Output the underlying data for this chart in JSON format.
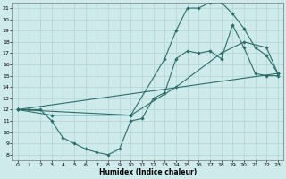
{
  "xlabel": "Humidex (Indice chaleur)",
  "bg_color": "#ceeaea",
  "line_color": "#2d6e6a",
  "grid_color": "#b0d4d4",
  "xlim": [
    -0.5,
    23.5
  ],
  "ylim": [
    7.5,
    21.5
  ],
  "xticks": [
    0,
    1,
    2,
    3,
    4,
    5,
    6,
    7,
    8,
    9,
    10,
    11,
    12,
    13,
    14,
    15,
    16,
    17,
    18,
    19,
    20,
    21,
    22,
    23
  ],
  "yticks": [
    8,
    9,
    10,
    11,
    12,
    13,
    14,
    15,
    16,
    17,
    18,
    19,
    20,
    21
  ],
  "line1_x": [
    0,
    1,
    2,
    3,
    4,
    5,
    6,
    7,
    8,
    9,
    10,
    11,
    12,
    13,
    14,
    15,
    16,
    17,
    18,
    19,
    20,
    21,
    22,
    23
  ],
  "line1_y": [
    12,
    12,
    12,
    11,
    9.5,
    9.0,
    8.5,
    8.2,
    8.0,
    8.5,
    11.0,
    11.2,
    13.0,
    13.5,
    16.5,
    17.2,
    17.0,
    17.2,
    16.5,
    19.5,
    17.5,
    15.2,
    15.0,
    15.0
  ],
  "line2_x": [
    0,
    3,
    10,
    13,
    14,
    15,
    16,
    17,
    18,
    19,
    20,
    21,
    22,
    23
  ],
  "line2_y": [
    12,
    11.5,
    11.5,
    16.5,
    19.0,
    21.0,
    21.0,
    21.5,
    21.5,
    20.5,
    19.2,
    17.5,
    16.8,
    15.2
  ],
  "line3_x": [
    0,
    10,
    14,
    18,
    20,
    22,
    23
  ],
  "line3_y": [
    12,
    11.5,
    14.0,
    17.0,
    18.0,
    17.5,
    15.2
  ],
  "line4_x": [
    0,
    23
  ],
  "line4_y": [
    12,
    15.2
  ]
}
